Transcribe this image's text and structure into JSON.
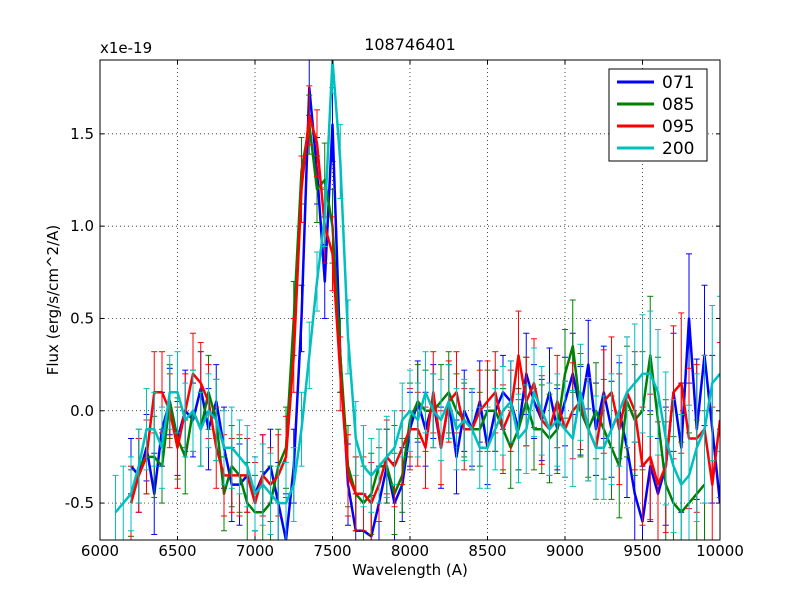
{
  "chart_data": {
    "type": "line",
    "title": "108746401",
    "xlabel": "Wavelength (A)",
    "ylabel": "Flux (erg/s/cm^2/A)",
    "offset_label": "x1e-19",
    "xlim": [
      6000,
      10000
    ],
    "ylim": [
      -0.7,
      1.9
    ],
    "xticks": [
      6000,
      6500,
      7000,
      7500,
      8000,
      8500,
      9000,
      9500,
      10000
    ],
    "xtick_labels": [
      "6000",
      "6500",
      "7000",
      "7500",
      "8000",
      "8500",
      "9000",
      "9500",
      "10000"
    ],
    "yticks": [
      -0.5,
      0.0,
      0.5,
      1.0,
      1.5
    ],
    "ytick_labels": [
      "-0.5",
      "0.0",
      "0.5",
      "1.0",
      "1.5"
    ],
    "grid": true,
    "legend_position": "top-right",
    "error_bars": true,
    "series": [
      {
        "name": "071",
        "color": "#0000ff",
        "x": [
          6200,
          6250,
          6300,
          6350,
          6400,
          6450,
          6500,
          6550,
          6600,
          6650,
          6700,
          6750,
          6800,
          6850,
          6900,
          6950,
          7000,
          7050,
          7100,
          7150,
          7200,
          7250,
          7300,
          7350,
          7400,
          7450,
          7500,
          7550,
          7600,
          7650,
          7700,
          7750,
          7800,
          7850,
          7900,
          7950,
          8000,
          8050,
          8100,
          8150,
          8200,
          8250,
          8300,
          8350,
          8400,
          8450,
          8500,
          8550,
          8600,
          8650,
          8700,
          8750,
          8800,
          8850,
          8900,
          8950,
          9000,
          9050,
          9100,
          9150,
          9200,
          9250,
          9300,
          9350,
          9400,
          9450,
          9500,
          9550,
          9600,
          9650,
          9700,
          9750,
          9800,
          9850,
          9900,
          9950,
          10000
        ],
        "y": [
          -0.3,
          -0.35,
          -0.2,
          -0.45,
          -0.1,
          0.05,
          -0.15,
          0.0,
          -0.05,
          0.12,
          -0.1,
          0.05,
          -0.2,
          -0.4,
          -0.4,
          -0.35,
          -0.45,
          -0.35,
          -0.3,
          -0.5,
          -0.7,
          -0.3,
          0.5,
          1.75,
          1.3,
          0.7,
          1.55,
          0.3,
          -0.4,
          -0.65,
          -0.65,
          -0.68,
          -0.5,
          -0.3,
          -0.5,
          -0.4,
          -0.1,
          0.05,
          -0.1,
          0.05,
          -0.2,
          0.05,
          -0.25,
          0.0,
          -0.1,
          0.05,
          -0.2,
          0.0,
          0.1,
          0.05,
          -0.1,
          0.2,
          0.05,
          -0.05,
          0.1,
          -0.1,
          0.05,
          0.2,
          0.0,
          0.25,
          -0.1,
          0.1,
          -0.1,
          0.0,
          -0.2,
          -0.45,
          -0.6,
          -0.3,
          -0.45,
          -0.3,
          0.1,
          -0.2,
          0.5,
          -0.1,
          0.3,
          -0.1,
          -0.5
        ],
        "err": [
          0.15,
          0.2,
          0.18,
          0.22,
          0.2,
          0.18,
          0.2,
          0.22,
          0.2,
          0.2,
          0.22,
          0.2,
          0.22,
          0.2,
          0.22,
          0.2,
          0.2,
          0.22,
          0.2,
          0.22,
          0.25,
          0.2,
          0.18,
          0.15,
          0.18,
          0.2,
          0.2,
          0.2,
          0.22,
          0.2,
          0.2,
          0.22,
          0.2,
          0.2,
          0.22,
          0.2,
          0.2,
          0.22,
          0.2,
          0.2,
          0.22,
          0.2,
          0.2,
          0.22,
          0.2,
          0.22,
          0.2,
          0.22,
          0.2,
          0.22,
          0.22,
          0.22,
          0.2,
          0.22,
          0.24,
          0.22,
          0.24,
          0.22,
          0.24,
          0.24,
          0.25,
          0.25,
          0.26,
          0.26,
          0.27,
          0.28,
          0.3,
          0.3,
          0.3,
          0.32,
          0.32,
          0.35,
          0.35,
          0.38,
          0.38,
          0.4,
          0.4
        ]
      },
      {
        "name": "085",
        "color": "#008000",
        "x": [
          6200,
          6250,
          6300,
          6350,
          6400,
          6450,
          6500,
          6550,
          6600,
          6650,
          6700,
          6750,
          6800,
          6850,
          6900,
          6950,
          7000,
          7050,
          7100,
          7150,
          7200,
          7250,
          7300,
          7350,
          7400,
          7450,
          7500,
          7550,
          7600,
          7650,
          7700,
          7750,
          7800,
          7850,
          7900,
          7950,
          8000,
          8050,
          8100,
          8150,
          8200,
          8250,
          8300,
          8350,
          8400,
          8450,
          8500,
          8550,
          8600,
          8650,
          8700,
          8750,
          8800,
          8850,
          8900,
          8950,
          9000,
          9050,
          9100,
          9150,
          9200,
          9250,
          9300,
          9350,
          9400,
          9450,
          9500,
          9550,
          9600,
          9650,
          9700,
          9750,
          9800,
          9850,
          9900
        ],
        "y": [
          -0.5,
          -0.3,
          -0.25,
          -0.25,
          -0.3,
          0.05,
          -0.15,
          -0.25,
          0.0,
          -0.1,
          0.1,
          -0.05,
          -0.45,
          -0.3,
          -0.35,
          -0.5,
          -0.55,
          -0.55,
          -0.5,
          -0.3,
          -0.2,
          0.5,
          1.3,
          1.55,
          1.2,
          1.25,
          1.0,
          0.3,
          -0.3,
          -0.45,
          -0.5,
          -0.45,
          -0.3,
          -0.3,
          -0.45,
          -0.35,
          -0.05,
          0.05,
          0.0,
          0.0,
          0.05,
          0.1,
          0.0,
          -0.05,
          -0.1,
          -0.1,
          0.0,
          0.0,
          -0.1,
          -0.2,
          -0.1,
          0.05,
          -0.1,
          -0.1,
          -0.15,
          -0.1,
          0.2,
          0.35,
          0.0,
          -0.1,
          0.0,
          -0.1,
          -0.2,
          -0.3,
          0.05,
          -0.05,
          0.0,
          0.3,
          -0.05,
          -0.4,
          -0.5,
          -0.55,
          -0.5,
          -0.45,
          -0.4
        ],
        "err": [
          0.18,
          0.2,
          0.2,
          0.22,
          0.2,
          0.2,
          0.22,
          0.2,
          0.22,
          0.2,
          0.2,
          0.22,
          0.2,
          0.22,
          0.2,
          0.22,
          0.2,
          0.22,
          0.2,
          0.2,
          0.22,
          0.2,
          0.18,
          0.16,
          0.18,
          0.2,
          0.2,
          0.2,
          0.22,
          0.2,
          0.2,
          0.22,
          0.2,
          0.2,
          0.22,
          0.2,
          0.2,
          0.2,
          0.22,
          0.2,
          0.2,
          0.22,
          0.2,
          0.2,
          0.22,
          0.2,
          0.22,
          0.22,
          0.22,
          0.22,
          0.22,
          0.24,
          0.22,
          0.24,
          0.24,
          0.24,
          0.24,
          0.25,
          0.25,
          0.26,
          0.26,
          0.27,
          0.28,
          0.28,
          0.3,
          0.3,
          0.32,
          0.32,
          0.34,
          0.34,
          0.36,
          0.38,
          0.38,
          0.4,
          0.4
        ]
      },
      {
        "name": "095",
        "color": "#ff0000",
        "x": [
          6200,
          6250,
          6300,
          6350,
          6400,
          6450,
          6500,
          6550,
          6600,
          6650,
          6700,
          6750,
          6800,
          6850,
          6900,
          6950,
          7000,
          7050,
          7100,
          7150,
          7200,
          7250,
          7300,
          7350,
          7400,
          7450,
          7500,
          7550,
          7600,
          7650,
          7700,
          7750,
          7800,
          7850,
          7900,
          7950,
          8000,
          8050,
          8100,
          8150,
          8200,
          8250,
          8300,
          8350,
          8400,
          8450,
          8500,
          8550,
          8600,
          8650,
          8700,
          8750,
          8800,
          8850,
          8900,
          8950,
          9000,
          9050,
          9100,
          9150,
          9200,
          9250,
          9300,
          9350,
          9400,
          9450,
          9500,
          9550,
          9600,
          9650,
          9700,
          9750,
          9800,
          9850,
          9900,
          9950,
          10000
        ],
        "y": [
          -0.5,
          -0.35,
          -0.25,
          0.1,
          0.1,
          0.0,
          -0.2,
          0.0,
          0.2,
          0.15,
          0.05,
          -0.2,
          -0.35,
          -0.35,
          -0.35,
          -0.35,
          -0.5,
          -0.35,
          -0.4,
          -0.35,
          -0.25,
          0.3,
          1.2,
          1.6,
          1.45,
          1.0,
          0.85,
          0.2,
          -0.35,
          -0.45,
          -0.45,
          -0.5,
          -0.4,
          -0.25,
          -0.3,
          -0.2,
          -0.1,
          -0.1,
          -0.2,
          0.1,
          -0.2,
          0.05,
          0.1,
          -0.1,
          -0.1,
          0.0,
          0.05,
          0.1,
          -0.1,
          0.0,
          0.3,
          0.05,
          0.15,
          -0.05,
          -0.1,
          0.05,
          -0.1,
          0.0,
          0.05,
          -0.1,
          -0.2,
          0.05,
          0.1,
          -0.1,
          0.1,
          0.0,
          -0.3,
          -0.25,
          -0.4,
          -0.3,
          0.1,
          0.15,
          -0.15,
          -0.15,
          -0.1,
          -0.4,
          -0.05
        ],
        "err": [
          0.2,
          0.2,
          0.2,
          0.22,
          0.22,
          0.2,
          0.22,
          0.2,
          0.22,
          0.22,
          0.2,
          0.22,
          0.22,
          0.2,
          0.22,
          0.2,
          0.22,
          0.22,
          0.2,
          0.22,
          0.22,
          0.2,
          0.18,
          0.16,
          0.18,
          0.2,
          0.2,
          0.2,
          0.22,
          0.2,
          0.2,
          0.22,
          0.2,
          0.2,
          0.22,
          0.2,
          0.22,
          0.2,
          0.22,
          0.22,
          0.2,
          0.22,
          0.22,
          0.22,
          0.22,
          0.22,
          0.22,
          0.22,
          0.24,
          0.22,
          0.24,
          0.24,
          0.24,
          0.24,
          0.25,
          0.25,
          0.26,
          0.26,
          0.26,
          0.28,
          0.28,
          0.28,
          0.3,
          0.3,
          0.3,
          0.32,
          0.32,
          0.34,
          0.34,
          0.36,
          0.36,
          0.38,
          0.38,
          0.4,
          0.4,
          0.42,
          0.42
        ]
      },
      {
        "name": "200",
        "color": "#00bfbf",
        "x": [
          6100,
          6150,
          6200,
          6250,
          6300,
          6350,
          6400,
          6450,
          6500,
          6550,
          6600,
          6650,
          6700,
          6750,
          6800,
          6850,
          6900,
          6950,
          7000,
          7050,
          7100,
          7150,
          7200,
          7250,
          7300,
          7350,
          7400,
          7450,
          7500,
          7550,
          7600,
          7650,
          7700,
          7750,
          7800,
          7850,
          7900,
          7950,
          8000,
          8050,
          8100,
          8150,
          8200,
          8250,
          8300,
          8350,
          8400,
          8450,
          8500,
          8550,
          8600,
          8650,
          8700,
          8750,
          8800,
          8850,
          8900,
          8950,
          9000,
          9050,
          9100,
          9150,
          9200,
          9250,
          9300,
          9350,
          9400,
          9450,
          9500,
          9550,
          9600,
          9650,
          9700,
          9750,
          9800,
          9850,
          9900,
          9950,
          10000
        ],
        "y": [
          -0.55,
          -0.5,
          -0.45,
          -0.3,
          -0.1,
          -0.1,
          -0.2,
          0.1,
          0.1,
          -0.05,
          0.0,
          -0.1,
          0.0,
          -0.05,
          -0.2,
          -0.2,
          -0.25,
          -0.3,
          -0.45,
          -0.4,
          -0.45,
          -0.5,
          -0.5,
          -0.4,
          -0.1,
          0.3,
          0.7,
          1.05,
          1.9,
          1.35,
          0.4,
          -0.15,
          -0.3,
          -0.35,
          -0.3,
          -0.25,
          -0.2,
          -0.05,
          0.0,
          -0.05,
          0.1,
          0.0,
          -0.05,
          0.05,
          -0.1,
          -0.05,
          -0.1,
          -0.2,
          -0.2,
          -0.1,
          0.0,
          0.05,
          -0.15,
          -0.1,
          0.1,
          0.0,
          -0.1,
          -0.05,
          -0.1,
          -0.15,
          0.1,
          -0.1,
          -0.2,
          -0.2,
          -0.1,
          0.0,
          0.1,
          0.15,
          0.2,
          0.2,
          0.1,
          -0.15,
          -0.3,
          -0.4,
          -0.35,
          -0.2,
          -0.1,
          0.15,
          0.2
        ],
        "err": [
          0.2,
          0.2,
          0.2,
          0.2,
          0.22,
          0.2,
          0.22,
          0.2,
          0.22,
          0.2,
          0.22,
          0.2,
          0.2,
          0.22,
          0.2,
          0.22,
          0.2,
          0.22,
          0.2,
          0.22,
          0.22,
          0.2,
          0.22,
          0.2,
          0.2,
          0.18,
          0.16,
          0.16,
          0.18,
          0.2,
          0.2,
          0.2,
          0.22,
          0.2,
          0.2,
          0.22,
          0.2,
          0.2,
          0.22,
          0.2,
          0.22,
          0.2,
          0.22,
          0.2,
          0.22,
          0.22,
          0.22,
          0.22,
          0.22,
          0.22,
          0.24,
          0.22,
          0.24,
          0.24,
          0.24,
          0.24,
          0.25,
          0.25,
          0.26,
          0.26,
          0.26,
          0.28,
          0.28,
          0.28,
          0.3,
          0.3,
          0.3,
          0.32,
          0.32,
          0.34,
          0.34,
          0.36,
          0.36,
          0.38,
          0.38,
          0.4,
          0.4,
          0.42,
          0.42
        ]
      }
    ]
  }
}
